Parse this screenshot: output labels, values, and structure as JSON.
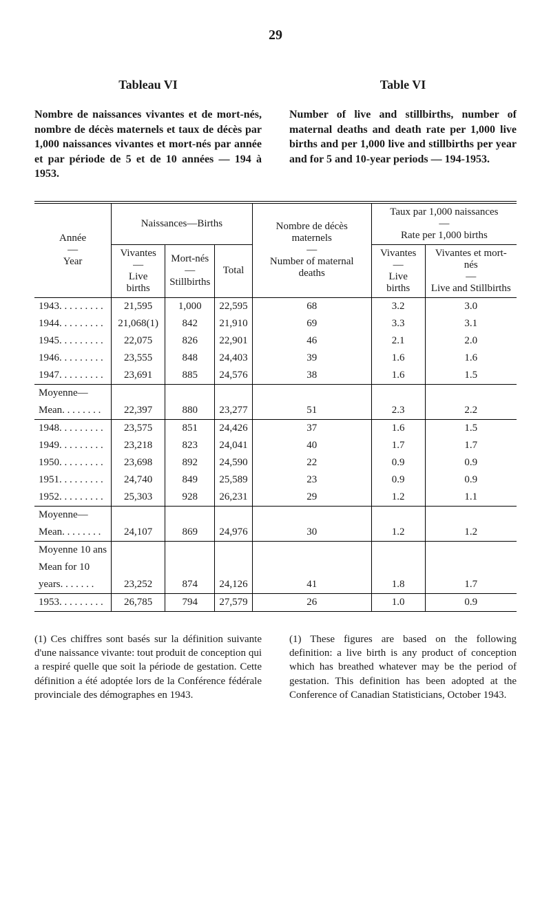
{
  "page_number": "29",
  "heading_left": "Tableau VI",
  "heading_right": "Table VI",
  "para_left": "Nombre de naissances vivantes et de mort-nés, nombre de décès maternels et taux de décès par 1,000 naissances vivantes et mort-nés par année et par période de 5 et de 10 années — 194 à 1953.",
  "para_right": "Number of live and stillbirths, number of maternal deaths and death rate per 1,000 live births and per 1,000 live and stillbirths per year and for 5 and 10-year periods — 194-1953.",
  "headers": {
    "year_fr": "Année",
    "year_en": "Year",
    "births": "Naissances—Births",
    "live_fr": "Vivantes",
    "live_en": "Live births",
    "still_fr": "Mort-nés",
    "still_en": "Stillbirths",
    "total": "Total",
    "mdeaths_fr": "Nombre de décès maternels",
    "mdeaths_en": "Number of maternal deaths",
    "rate_fr": "Taux par 1,000 naissances",
    "rate_en": "Rate per 1,000 births",
    "rate_live_fr": "Vivantes",
    "rate_live_en": "Live births",
    "rate_both_fr": "Vivantes et mort-nés",
    "rate_both_en": "Live and Stillbirths"
  },
  "block1": [
    {
      "year": "1943. . . . . . . . .",
      "live": "21,595",
      "still": "1,000",
      "total": "22,595",
      "md": "68",
      "r1": "3.2",
      "r2": "3.0"
    },
    {
      "year": "1944. . . . . . . . .",
      "live": "21,068(1)",
      "still": "842",
      "total": "21,910",
      "md": "69",
      "r1": "3.3",
      "r2": "3.1"
    },
    {
      "year": "1945. . . . . . . . .",
      "live": "22,075",
      "still": "826",
      "total": "22,901",
      "md": "46",
      "r1": "2.1",
      "r2": "2.0"
    },
    {
      "year": "1946. . . . . . . . .",
      "live": "23,555",
      "still": "848",
      "total": "24,403",
      "md": "39",
      "r1": "1.6",
      "r2": "1.6"
    },
    {
      "year": "1947. . . . . . . . .",
      "live": "23,691",
      "still": "885",
      "total": "24,576",
      "md": "38",
      "r1": "1.6",
      "r2": "1.5"
    }
  ],
  "mean1_label1": "Moyenne—",
  "mean1_label2": "Mean. . . . . . . .",
  "mean1": {
    "live": "22,397",
    "still": "880",
    "total": "23,277",
    "md": "51",
    "r1": "2.3",
    "r2": "2.2"
  },
  "block2": [
    {
      "year": "1948. . . . . . . . .",
      "live": "23,575",
      "still": "851",
      "total": "24,426",
      "md": "37",
      "r1": "1.6",
      "r2": "1.5"
    },
    {
      "year": "1949. . . . . . . . .",
      "live": "23,218",
      "still": "823",
      "total": "24,041",
      "md": "40",
      "r1": "1.7",
      "r2": "1.7"
    },
    {
      "year": "1950. . . . . . . . .",
      "live": "23,698",
      "still": "892",
      "total": "24,590",
      "md": "22",
      "r1": "0.9",
      "r2": "0.9"
    },
    {
      "year": "1951. . . . . . . . .",
      "live": "24,740",
      "still": "849",
      "total": "25,589",
      "md": "23",
      "r1": "0.9",
      "r2": "0.9"
    },
    {
      "year": "1952. . . . . . . . .",
      "live": "25,303",
      "still": "928",
      "total": "26,231",
      "md": "29",
      "r1": "1.2",
      "r2": "1.1"
    }
  ],
  "mean2_label1": "Moyenne—",
  "mean2_label2": "Mean. . . . . . . .",
  "mean2": {
    "live": "24,107",
    "still": "869",
    "total": "24,976",
    "md": "30",
    "r1": "1.2",
    "r2": "1.2"
  },
  "mean10_label1": "Moyenne 10 ans",
  "mean10_label2": "Mean for 10",
  "mean10_label3": "  years. . . . . . .",
  "mean10": {
    "live": "23,252",
    "still": "874",
    "total": "24,126",
    "md": "41",
    "r1": "1.8",
    "r2": "1.7"
  },
  "row1953": {
    "year": "1953. . . . . . . . .",
    "live": "26,785",
    "still": "794",
    "total": "27,579",
    "md": "26",
    "r1": "1.0",
    "r2": "0.9"
  },
  "footnote_left": "(1) Ces chiffres sont basés sur la définition suivante d'une naissance vivante: tout produit de conception qui a respiré quelle que soit la période de gestation. Cette définition a été adoptée lors de la Conférence fédérale provinciale des démographes en 1943.",
  "footnote_right": "(1) These figures are based on the following definition: a live birth is any product of conception which has breathed whatever may be the period of gestation. This definition has been adopted at the Conference of Canadian Statisticians, October 1943."
}
